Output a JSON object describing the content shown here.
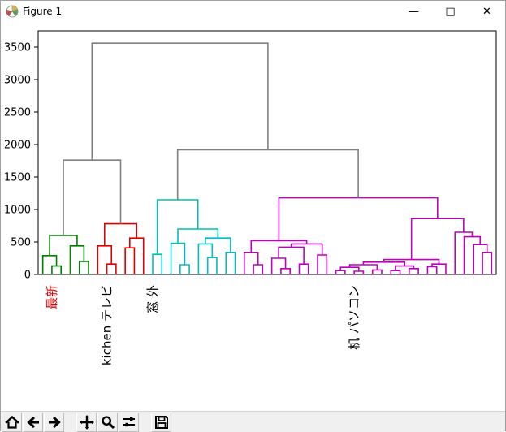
{
  "window": {
    "title": "Figure 1",
    "controls": {
      "minimize": "—",
      "maximize": "□",
      "close": "✕"
    }
  },
  "toolbar": {
    "buttons": [
      {
        "id": "home",
        "icon": "home-icon"
      },
      {
        "id": "back",
        "icon": "back-arrow-icon"
      },
      {
        "id": "forward",
        "icon": "forward-arrow-icon"
      },
      {
        "id": "pan",
        "icon": "pan-arrows-icon"
      },
      {
        "id": "zoom",
        "icon": "zoom-magnifier-icon"
      },
      {
        "id": "subplots",
        "icon": "sliders-icon"
      },
      {
        "id": "save",
        "icon": "save-floppy-icon"
      }
    ]
  },
  "chart_data": {
    "type": "dendrogram",
    "title": "",
    "xlabel": "",
    "ylabel": "",
    "grid": false,
    "legend": null,
    "ylim": [
      0,
      3750
    ],
    "xlim": [
      0,
      500
    ],
    "yticks": [
      0,
      500,
      1000,
      1500,
      2000,
      2500,
      3000,
      3500
    ],
    "leaf_count": 50,
    "leaf_spacing": 10,
    "colors": {
      "g": "#008000",
      "r": "#e00000",
      "c": "#00bfbf",
      "m": "#bf00bf",
      "k": "#808080"
    },
    "leaf_labels": [
      {
        "x": 15,
        "label": "最新",
        "color": "#dd0000"
      },
      {
        "x": 75,
        "label": "kichen テレビ",
        "color": "#000000"
      },
      {
        "x": 125,
        "label": "窓 外",
        "color": "#000000"
      },
      {
        "x": 345,
        "label": "机 パソコン",
        "color": "#000000"
      }
    ],
    "links": [
      [
        15,
        0,
        25,
        0,
        130,
        "g"
      ],
      [
        5,
        0,
        20,
        130,
        290,
        "g"
      ],
      [
        45,
        0,
        55,
        0,
        200,
        "g"
      ],
      [
        35,
        0,
        50,
        200,
        440,
        "g"
      ],
      [
        12.5,
        290,
        42.5,
        440,
        600,
        "g"
      ],
      [
        75,
        0,
        85,
        0,
        160,
        "r"
      ],
      [
        65,
        0,
        80,
        160,
        440,
        "r"
      ],
      [
        95,
        0,
        105,
        0,
        410,
        "r"
      ],
      [
        100,
        410,
        115,
        0,
        560,
        "r"
      ],
      [
        72.5,
        440,
        107.5,
        560,
        780,
        "r"
      ],
      [
        155,
        0,
        165,
        0,
        150,
        "c"
      ],
      [
        145,
        0,
        160,
        150,
        480,
        "c"
      ],
      [
        185,
        0,
        195,
        0,
        260,
        "c"
      ],
      [
        175,
        0,
        190,
        260,
        470,
        "c"
      ],
      [
        205,
        0,
        215,
        0,
        340,
        "c"
      ],
      [
        182.5,
        470,
        210,
        340,
        560,
        "c"
      ],
      [
        152.5,
        480,
        196.25,
        560,
        700,
        "c"
      ],
      [
        125,
        0,
        135,
        0,
        310,
        "c"
      ],
      [
        130,
        310,
        174.4,
        700,
        1150,
        "c"
      ],
      [
        235,
        0,
        245,
        0,
        150,
        "m"
      ],
      [
        225,
        0,
        240,
        150,
        340,
        "m"
      ],
      [
        265,
        0,
        275,
        0,
        90,
        "m"
      ],
      [
        255,
        0,
        270,
        90,
        250,
        "m"
      ],
      [
        285,
        0,
        295,
        0,
        160,
        "m"
      ],
      [
        262.5,
        250,
        290,
        160,
        420,
        "m"
      ],
      [
        305,
        0,
        315,
        0,
        300,
        "m"
      ],
      [
        276.25,
        420,
        310,
        300,
        470,
        "m"
      ],
      [
        232.5,
        340,
        293.1,
        470,
        520,
        "m"
      ],
      [
        325,
        0,
        335,
        0,
        60,
        "m"
      ],
      [
        345,
        0,
        355,
        0,
        50,
        "m"
      ],
      [
        330,
        60,
        350,
        50,
        110,
        "m"
      ],
      [
        365,
        0,
        375,
        0,
        70,
        "m"
      ],
      [
        340,
        110,
        370,
        70,
        150,
        "m"
      ],
      [
        385,
        0,
        395,
        0,
        60,
        "m"
      ],
      [
        405,
        0,
        415,
        0,
        90,
        "m"
      ],
      [
        390,
        60,
        410,
        90,
        130,
        "m"
      ],
      [
        355,
        150,
        400,
        130,
        190,
        "m"
      ],
      [
        425,
        0,
        435,
        0,
        120,
        "m"
      ],
      [
        430,
        120,
        445,
        0,
        160,
        "m"
      ],
      [
        377.5,
        190,
        437.5,
        160,
        230,
        "m"
      ],
      [
        485,
        0,
        495,
        0,
        340,
        "m"
      ],
      [
        475,
        0,
        490,
        340,
        460,
        "m"
      ],
      [
        465,
        0,
        482.5,
        460,
        580,
        "m"
      ],
      [
        455,
        0,
        473.75,
        580,
        650,
        "m"
      ],
      [
        407.5,
        230,
        464.4,
        650,
        860,
        "m"
      ],
      [
        262.8,
        520,
        436,
        860,
        1180,
        "m"
      ],
      [
        27.5,
        600,
        90,
        780,
        1760,
        "k"
      ],
      [
        152.2,
        1150,
        349.4,
        1180,
        1920,
        "k"
      ],
      [
        58.75,
        1760,
        250.8,
        1920,
        3560,
        "k"
      ]
    ]
  }
}
